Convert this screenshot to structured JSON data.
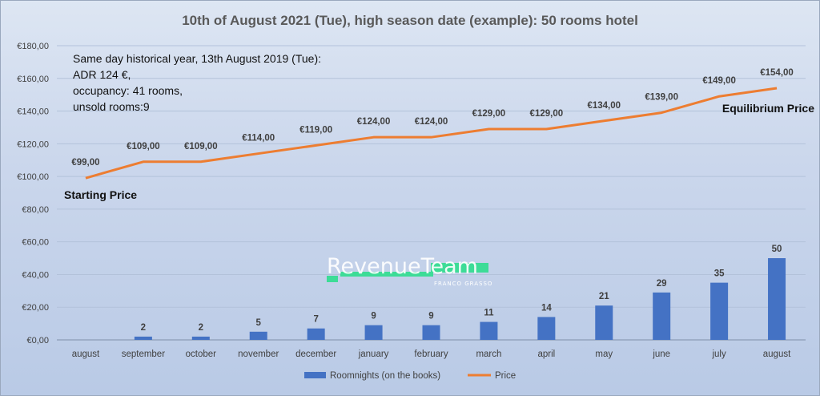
{
  "chart_data": {
    "type": "bar+line",
    "title": "10th of August 2021 (Tue), high season date (example): 50 rooms hotel",
    "categories": [
      "august",
      "september",
      "october",
      "november",
      "december",
      "january",
      "february",
      "march",
      "april",
      "may",
      "june",
      "july",
      "august"
    ],
    "series": [
      {
        "name": "Roomnights (on the books)",
        "type": "bar",
        "color": "#4472c4",
        "values": [
          0,
          2,
          2,
          5,
          7,
          9,
          9,
          11,
          14,
          21,
          29,
          35,
          50
        ],
        "labels": [
          "",
          "2",
          "2",
          "5",
          "7",
          "9",
          "9",
          "11",
          "14",
          "21",
          "29",
          "35",
          "50"
        ]
      },
      {
        "name": "Price",
        "type": "line",
        "color": "#ed7d31",
        "values": [
          99,
          109,
          109,
          114,
          119,
          124,
          124,
          129,
          129,
          134,
          139,
          149,
          154
        ],
        "labels": [
          "€99,00",
          "€109,00",
          "€109,00",
          "€114,00",
          "€119,00",
          "€124,00",
          "€124,00",
          "€129,00",
          "€129,00",
          "€134,00",
          "€139,00",
          "€149,00",
          "€154,00"
        ]
      }
    ],
    "y_axis": {
      "ylim": [
        0,
        180
      ],
      "ticks": [
        0,
        20,
        40,
        60,
        80,
        100,
        120,
        140,
        160,
        180
      ],
      "tick_labels": [
        "€0,00",
        "€20,00",
        "€40,00",
        "€60,00",
        "€80,00",
        "€100,00",
        "€120,00",
        "€140,00",
        "€160,00",
        "€180,00"
      ]
    },
    "grid": true,
    "legend_position": "bottom",
    "annotations": {
      "note_lines": [
        "Same day historical year, 13th August 2019 (Tue):",
        "ADR 124 €,",
        "occupancy: 41 rooms,",
        "unsold rooms:9"
      ],
      "start_label": "Starting Price",
      "end_label": "Equilibrium Price"
    }
  },
  "watermark": {
    "brand_main": "RevenueTeam",
    "brand_sub": "FRANCO GRASSO",
    "accent_color": "#3ddc97"
  }
}
